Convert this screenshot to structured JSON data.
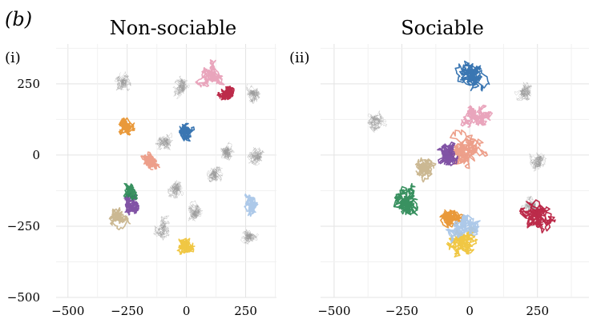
{
  "figure_label": "(b)",
  "chart_data": [
    {
      "type": "scatter",
      "panel_label": "(i)",
      "title": "Non-sociable",
      "xlim": [
        -550,
        380
      ],
      "ylim": [
        -500,
        390
      ],
      "xticks": [
        -500,
        -250,
        0,
        250
      ],
      "yticks": [
        -500,
        -250,
        0,
        250
      ],
      "xtick_labels": [
        "−500",
        "−250",
        "0",
        "250"
      ],
      "ytick_labels": [
        "−500",
        "−250",
        "0",
        "250"
      ],
      "grid": true,
      "background_clusters_gray": [
        {
          "x": -270,
          "y": 255
        },
        {
          "x": -20,
          "y": 240
        },
        {
          "x": 280,
          "y": 215
        },
        {
          "x": -90,
          "y": 50
        },
        {
          "x": 170,
          "y": 10
        },
        {
          "x": 290,
          "y": -5
        },
        {
          "x": -50,
          "y": -120
        },
        {
          "x": 120,
          "y": -70
        },
        {
          "x": -100,
          "y": -260
        },
        {
          "x": 40,
          "y": -200
        },
        {
          "x": 265,
          "y": -285
        }
      ],
      "series": [
        {
          "color": "#e8932f",
          "center": [
            -255,
            100
          ],
          "spread": 45
        },
        {
          "color": "#e8a0b8",
          "center": [
            110,
            275
          ],
          "spread": 55
        },
        {
          "color": "#b82040",
          "center": [
            170,
            220
          ],
          "spread": 40
        },
        {
          "color": "#2f6fae",
          "center": [
            0,
            85
          ],
          "spread": 45
        },
        {
          "color": "#ec9a84",
          "center": [
            -150,
            -25
          ],
          "spread": 45
        },
        {
          "color": "#7a4aa0",
          "center": [
            -230,
            -175
          ],
          "spread": 45
        },
        {
          "color": "#2e8b57",
          "center": [
            -230,
            -135
          ],
          "spread": 40
        },
        {
          "color": "#c8b48c",
          "center": [
            -290,
            -220
          ],
          "spread": 45
        },
        {
          "color": "#efc43a",
          "center": [
            0,
            -320
          ],
          "spread": 50
        },
        {
          "color": "#a9c6e8",
          "center": [
            270,
            -180
          ],
          "spread": 45
        }
      ]
    },
    {
      "type": "scatter",
      "panel_label": "(ii)",
      "title": "Sociable",
      "xlim": [
        -550,
        440
      ],
      "ylim": [
        -500,
        390
      ],
      "xticks": [
        -500,
        -250,
        0,
        250
      ],
      "xtick_labels": [
        "−500",
        "−250",
        "0",
        "250"
      ],
      "grid": true,
      "background_clusters_gray": [
        {
          "x": -350,
          "y": 120
        },
        {
          "x": 200,
          "y": 220
        },
        {
          "x": 250,
          "y": -20
        },
        {
          "x": 230,
          "y": -180
        }
      ],
      "series": [
        {
          "color": "#2f6fae",
          "center": [
            0,
            275
          ],
          "spread": 70
        },
        {
          "color": "#e8a0b8",
          "center": [
            30,
            140
          ],
          "spread": 60
        },
        {
          "color": "#ec9a84",
          "center": [
            -20,
            20
          ],
          "spread": 80
        },
        {
          "color": "#7a4aa0",
          "center": [
            -80,
            0
          ],
          "spread": 60
        },
        {
          "color": "#c8b48c",
          "center": [
            -170,
            -40
          ],
          "spread": 50
        },
        {
          "color": "#2e8b57",
          "center": [
            -230,
            -170
          ],
          "spread": 70
        },
        {
          "color": "#e8932f",
          "center": [
            -60,
            -230
          ],
          "spread": 50
        },
        {
          "color": "#efc43a",
          "center": [
            -20,
            -300
          ],
          "spread": 70
        },
        {
          "color": "#a9c6e8",
          "center": [
            -20,
            -250
          ],
          "spread": 70
        },
        {
          "color": "#b82040",
          "center": [
            245,
            -225
          ],
          "spread": 75
        }
      ]
    }
  ]
}
